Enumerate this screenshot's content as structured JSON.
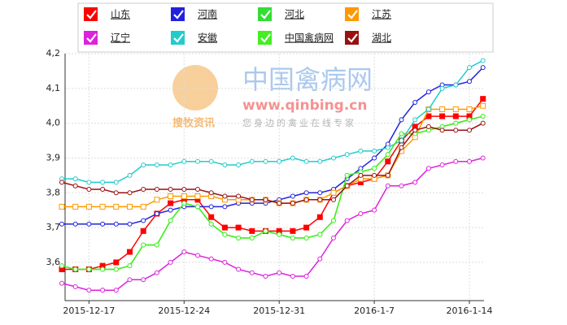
{
  "chart_data": {
    "type": "line",
    "watermark": {
      "site": "中国禽病网",
      "url": "www.qinbing.cn",
      "brand": "搜牧资讯",
      "slogan": "您身边的禽业在线专家"
    },
    "categories": [
      null,
      null,
      "2015-12-17",
      null,
      null,
      null,
      null,
      null,
      null,
      "2015-12-24",
      null,
      null,
      null,
      null,
      null,
      null,
      "2015-12-31",
      null,
      null,
      null,
      null,
      null,
      null,
      "2016-1-7",
      null,
      null,
      null,
      null,
      null,
      null,
      "2016-1-14",
      null
    ],
    "ylim": [
      3.49,
      4.2
    ],
    "yticks": [
      {
        "value": 3.6,
        "label": "3,6"
      },
      {
        "value": 3.7,
        "label": "3,7"
      },
      {
        "value": 3.8,
        "label": "3,8"
      },
      {
        "value": 3.9,
        "label": "3,9"
      },
      {
        "value": 4.0,
        "label": "4,0"
      },
      {
        "value": 4.1,
        "label": "4,1"
      },
      {
        "value": 4.2,
        "label": "4,2"
      }
    ],
    "grid": true,
    "series": [
      {
        "name": "山东",
        "color": "#ff0000",
        "marker": "square",
        "values": [
          3.58,
          3.58,
          3.58,
          3.59,
          3.6,
          3.63,
          3.69,
          3.74,
          3.77,
          3.78,
          3.78,
          3.73,
          3.7,
          3.7,
          3.69,
          3.69,
          3.69,
          3.69,
          3.7,
          3.73,
          3.8,
          3.82,
          3.83,
          3.84,
          3.89,
          3.95,
          3.99,
          4.02,
          4.02,
          4.02,
          4.02,
          4.07
        ]
      },
      {
        "name": "河南",
        "color": "#2222dd",
        "marker": "circle",
        "values": [
          3.71,
          3.71,
          3.71,
          3.71,
          3.71,
          3.71,
          3.72,
          3.74,
          3.75,
          3.76,
          3.76,
          3.76,
          3.76,
          3.77,
          3.77,
          3.77,
          3.78,
          3.79,
          3.8,
          3.8,
          3.81,
          3.84,
          3.87,
          3.9,
          3.94,
          4.01,
          4.06,
          4.09,
          4.11,
          4.11,
          4.12,
          4.16
        ]
      },
      {
        "name": "河北",
        "color": "#33dd33",
        "marker": "circle",
        "values": [
          3.59,
          3.58,
          3.58,
          3.58,
          3.58,
          3.59,
          3.65,
          3.65,
          3.72,
          3.77,
          3.76,
          3.71,
          3.68,
          3.67,
          3.67,
          3.69,
          3.68,
          3.67,
          3.67,
          3.68,
          3.72,
          3.85,
          3.86,
          3.87,
          3.91,
          3.97,
          3.97,
          3.98,
          3.99,
          4.0,
          4.01,
          4.02
        ]
      },
      {
        "name": "江苏",
        "color": "#ff9900",
        "marker": "square",
        "values": [
          3.76,
          3.76,
          3.76,
          3.76,
          3.76,
          3.76,
          3.76,
          3.78,
          3.79,
          3.79,
          3.79,
          3.79,
          3.78,
          3.78,
          3.78,
          3.78,
          3.77,
          3.77,
          3.78,
          3.78,
          3.8,
          3.82,
          3.84,
          3.84,
          3.85,
          3.92,
          3.96,
          4.04,
          4.04,
          4.04,
          4.04,
          4.05
        ]
      },
      {
        "name": "辽宁",
        "color": "#dd22dd",
        "marker": "circle",
        "values": [
          3.54,
          3.53,
          3.52,
          3.52,
          3.52,
          3.55,
          3.55,
          3.57,
          3.6,
          3.63,
          3.62,
          3.61,
          3.6,
          3.58,
          3.57,
          3.56,
          3.57,
          3.56,
          3.56,
          3.61,
          3.67,
          3.72,
          3.74,
          3.75,
          3.82,
          3.82,
          3.83,
          3.87,
          3.88,
          3.89,
          3.89,
          3.9
        ]
      },
      {
        "name": "安徽",
        "color": "#22cccc",
        "marker": "circle",
        "values": [
          3.84,
          3.84,
          3.83,
          3.83,
          3.83,
          3.85,
          3.88,
          3.88,
          3.88,
          3.89,
          3.89,
          3.89,
          3.88,
          3.88,
          3.89,
          3.89,
          3.89,
          3.9,
          3.89,
          3.89,
          3.9,
          3.91,
          3.92,
          3.92,
          3.93,
          3.95,
          4.01,
          4.04,
          4.1,
          4.11,
          4.16,
          4.18
        ]
      },
      {
        "name": "中国禽病网",
        "color": "#44ee22",
        "marker": "circle",
        "values": [
          3.59,
          3.58,
          3.58,
          3.58,
          3.58,
          3.59,
          3.65,
          3.65,
          3.72,
          3.77,
          3.76,
          3.71,
          3.68,
          3.67,
          3.67,
          3.69,
          3.68,
          3.67,
          3.67,
          3.68,
          3.72,
          3.85,
          3.86,
          3.87,
          3.91,
          3.97,
          3.97,
          3.98,
          3.99,
          4.0,
          4.01,
          4.02
        ]
      },
      {
        "name": "湖北",
        "color": "#991111",
        "marker": "circle",
        "values": [
          3.83,
          3.82,
          3.81,
          3.81,
          3.8,
          3.8,
          3.81,
          3.81,
          3.81,
          3.81,
          3.81,
          3.8,
          3.79,
          3.79,
          3.78,
          3.78,
          3.77,
          3.77,
          3.78,
          3.78,
          3.78,
          3.82,
          3.85,
          3.85,
          3.85,
          3.93,
          3.98,
          3.99,
          3.98,
          3.98,
          3.98,
          4.0
        ]
      }
    ]
  }
}
